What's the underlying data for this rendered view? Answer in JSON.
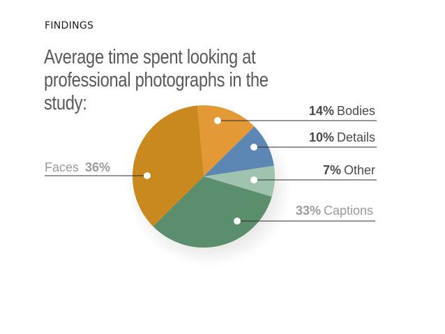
{
  "header": {
    "eyebrow": "FINDINGS"
  },
  "chart_data": {
    "type": "pie",
    "title": "Average time spent looking at professional photographs in the study:",
    "series": [
      {
        "name": "Bodies",
        "value": 14,
        "label_pct": "14%",
        "color": "#e39a36"
      },
      {
        "name": "Details",
        "value": 10,
        "label_pct": "10%",
        "color": "#5c86b3"
      },
      {
        "name": "Other",
        "value": 7,
        "label_pct": "7%",
        "color": "#9fc3af"
      },
      {
        "name": "Captions",
        "value": 33,
        "label_pct": "33%",
        "color": "#5b8e6c"
      },
      {
        "name": "Faces",
        "value": 36,
        "label_pct": "36%",
        "color": "#c9891e"
      }
    ],
    "label_colors": {
      "dark": "#4a4a4a",
      "light": "#9a9a9a"
    }
  }
}
